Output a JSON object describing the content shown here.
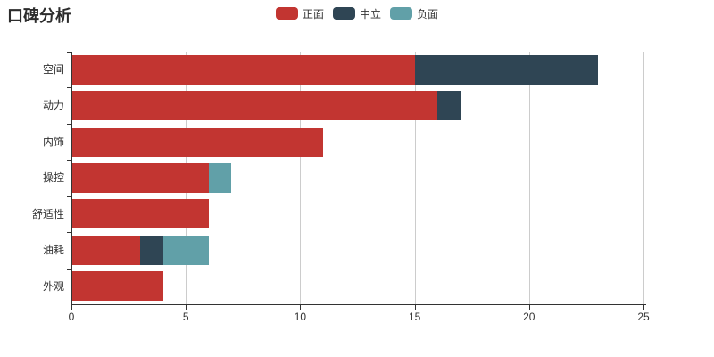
{
  "title": "口碑分析",
  "chart_data": {
    "type": "bar",
    "orientation": "horizontal",
    "stacked": true,
    "title": "口碑分析",
    "categories": [
      "空间",
      "动力",
      "内饰",
      "操控",
      "舒适性",
      "油耗",
      "外观"
    ],
    "series": [
      {
        "name": "正面",
        "color": "#c23531",
        "values": [
          15,
          16,
          11,
          6,
          6,
          3,
          4
        ]
      },
      {
        "name": "中立",
        "color": "#2f4554",
        "values": [
          8,
          1,
          0,
          0,
          0,
          1,
          0
        ]
      },
      {
        "name": "负面",
        "color": "#61a0a8",
        "values": [
          0,
          0,
          0,
          1,
          0,
          2,
          0
        ]
      }
    ],
    "totals": [
      23,
      17,
      11,
      7,
      6,
      6,
      4
    ],
    "xlim": [
      0,
      25
    ],
    "x_ticks": [
      "0",
      "5",
      "10",
      "15",
      "20",
      "25"
    ],
    "grid": true,
    "legend_position": "top-center",
    "legend_entries": [
      "正面",
      "中立",
      "负面"
    ]
  },
  "colors": {
    "positive": "#c23531",
    "neutral": "#2f4554",
    "negative": "#61a0a8",
    "axis": "#333333",
    "gridline": "#cccccc",
    "text": "#333333",
    "background": "#ffffff"
  }
}
